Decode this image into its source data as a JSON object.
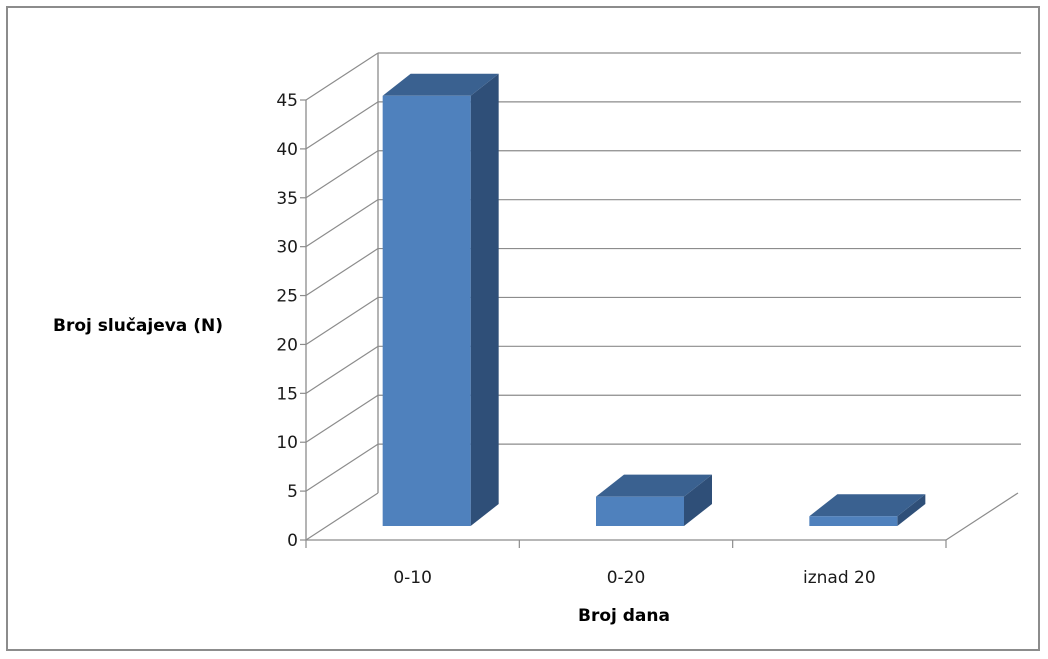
{
  "chart_data": {
    "type": "bar",
    "categories": [
      "0-10",
      "0-20",
      "iznad 20"
    ],
    "values": [
      44,
      3,
      1
    ],
    "xlabel": "Broj dana",
    "ylabel": "Broj slučajeva (N)",
    "ylim": [
      0,
      45
    ],
    "y_ticks": [
      0,
      5,
      10,
      15,
      20,
      25,
      30,
      35,
      40,
      45
    ],
    "grid": true,
    "legend": "none",
    "style": "3d-column",
    "colors": {
      "bar_front": "#4f81bd",
      "bar_side": "#2f4f78",
      "bar_top": "#3a6190",
      "grid": "#8c8c8c"
    }
  }
}
